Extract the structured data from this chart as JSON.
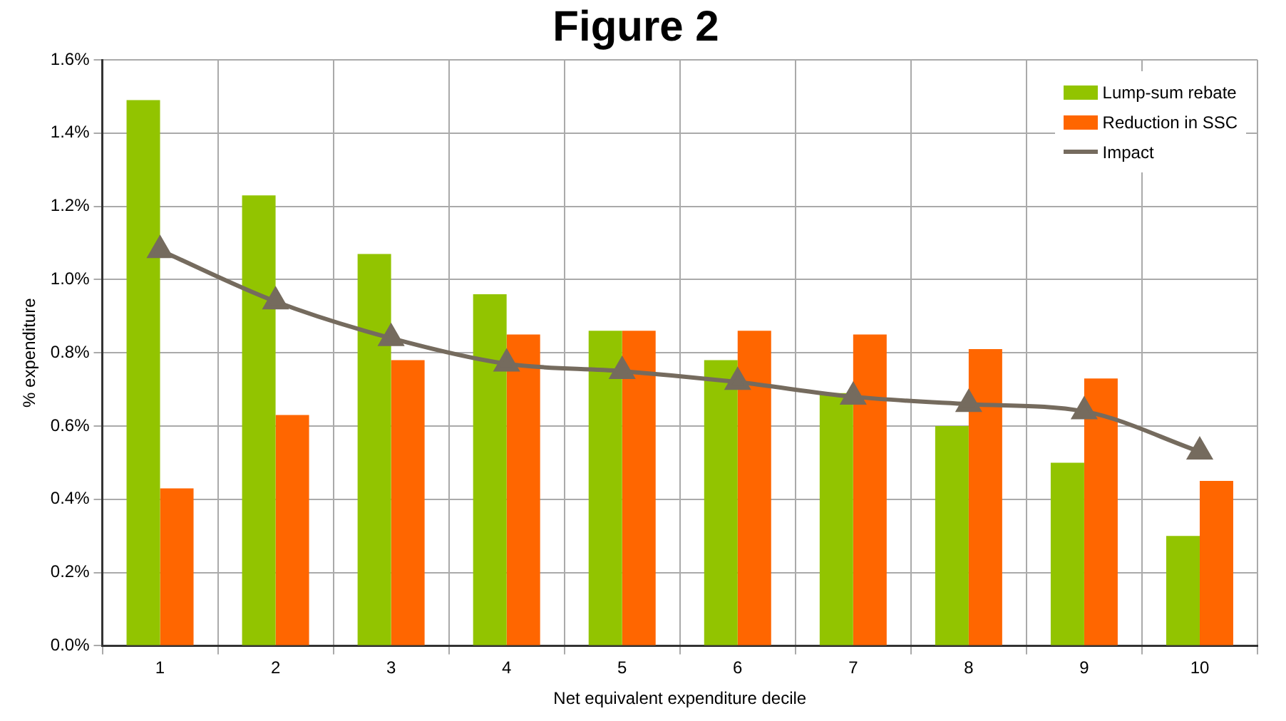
{
  "chart_data": {
    "type": "bar",
    "title": "Figure 2",
    "xlabel": "Net equivalent expenditure decile",
    "ylabel": "% expenditure",
    "categories": [
      "1",
      "2",
      "3",
      "4",
      "5",
      "6",
      "7",
      "8",
      "9",
      "10"
    ],
    "series": [
      {
        "name": "Lump-sum rebate",
        "color": "#92c400",
        "values": [
          1.49,
          1.23,
          1.07,
          0.96,
          0.86,
          0.78,
          0.69,
          0.6,
          0.5,
          0.3
        ]
      },
      {
        "name": "Reduction in SSC",
        "color": "#ff6600",
        "values": [
          0.43,
          0.63,
          0.78,
          0.85,
          0.86,
          0.86,
          0.85,
          0.81,
          0.73,
          0.45
        ]
      },
      {
        "name": "Impact",
        "type": "line",
        "color": "#756b5e",
        "marker": "triangle",
        "values": [
          1.08,
          0.94,
          0.84,
          0.77,
          0.75,
          0.72,
          0.68,
          0.66,
          0.64,
          0.53
        ]
      }
    ],
    "ylim": [
      0,
      1.6
    ],
    "yticks": [
      {
        "value": 0,
        "label": "0.0%"
      },
      {
        "value": 0.2,
        "label": "0.2%"
      },
      {
        "value": 0.4,
        "label": "0.4%"
      },
      {
        "value": 0.6,
        "label": "0.6%"
      },
      {
        "value": 0.8,
        "label": "0.8%"
      },
      {
        "value": 1.0,
        "label": "1.0%"
      },
      {
        "value": 1.2,
        "label": "1.2%"
      },
      {
        "value": 1.4,
        "label": "1.4%"
      },
      {
        "value": 1.6,
        "label": "1.6%"
      }
    ],
    "grid": true,
    "legend": "top right"
  }
}
